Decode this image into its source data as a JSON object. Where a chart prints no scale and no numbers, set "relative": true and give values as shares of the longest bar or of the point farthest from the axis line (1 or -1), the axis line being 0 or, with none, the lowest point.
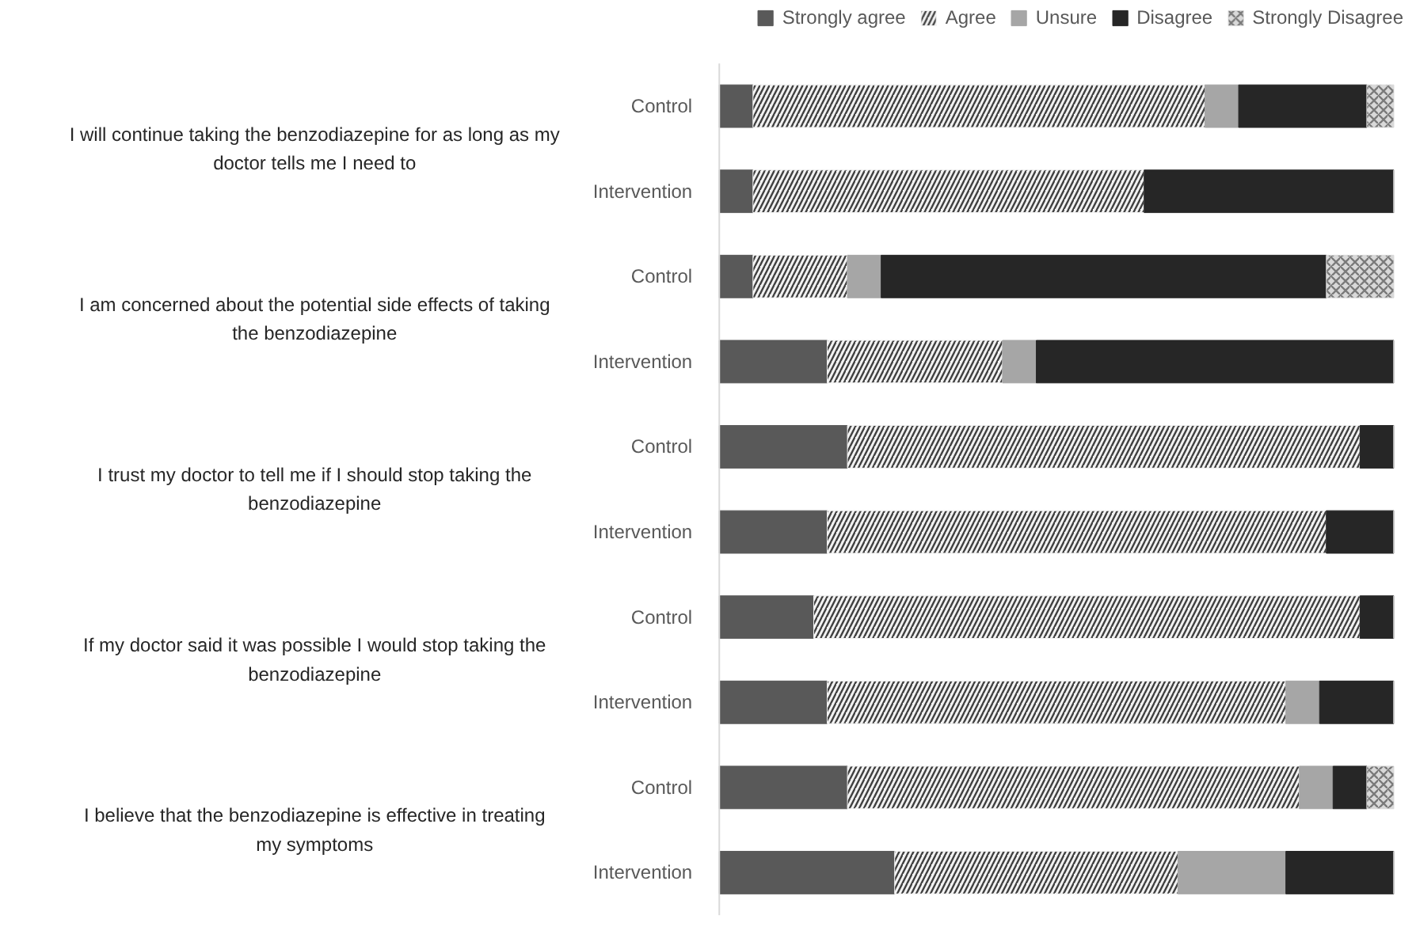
{
  "chart_data": {
    "type": "bar",
    "orientation": "horizontal",
    "stacked": true,
    "relative": true,
    "legend": "top right",
    "categories": [
      "Control",
      "Intervention",
      "Control",
      "Intervention",
      "Control",
      "Intervention",
      "Control",
      "Intervention",
      "Control",
      "Intervention"
    ],
    "annotations": [
      "I will continue taking the benzodiazepine for as long as my doctor tells me I need to",
      "I am concerned about the potential side effects of taking the benzodiazepine",
      "I trust my doctor to tell me if I should stop taking the benzodiazepine",
      "If my doctor said it was possible I would stop taking the benzodiazepine",
      "I believe that the benzodiazepine is effective in treating my symptoms"
    ],
    "series": [
      {
        "name": "Strongly agree",
        "color": "#595959",
        "values": [
          0.05,
          0.05,
          0.05,
          0.16,
          0.19,
          0.16,
          0.14,
          0.16,
          0.19,
          0.26
        ]
      },
      {
        "name": "Agree",
        "color": "#f2f2f2",
        "values": [
          0.67,
          0.58,
          0.14,
          0.26,
          0.76,
          0.74,
          0.81,
          0.68,
          0.67,
          0.42
        ]
      },
      {
        "name": "Unsure",
        "color": "#a6a6a6",
        "values": [
          0.05,
          0,
          0.05,
          0.05,
          0,
          0,
          0,
          0.05,
          0.05,
          0.16
        ]
      },
      {
        "name": "Disagree",
        "color": "#262626",
        "values": [
          0.19,
          0.37,
          0.66,
          0.53,
          0.05,
          0.1,
          0.05,
          0.11,
          0.05,
          0.16
        ]
      },
      {
        "name": "Strongly Disagree",
        "color": "#d9d9d9",
        "values": [
          0.04,
          0,
          0.1,
          0,
          0,
          0,
          0,
          0,
          0.04,
          0
        ]
      }
    ]
  }
}
